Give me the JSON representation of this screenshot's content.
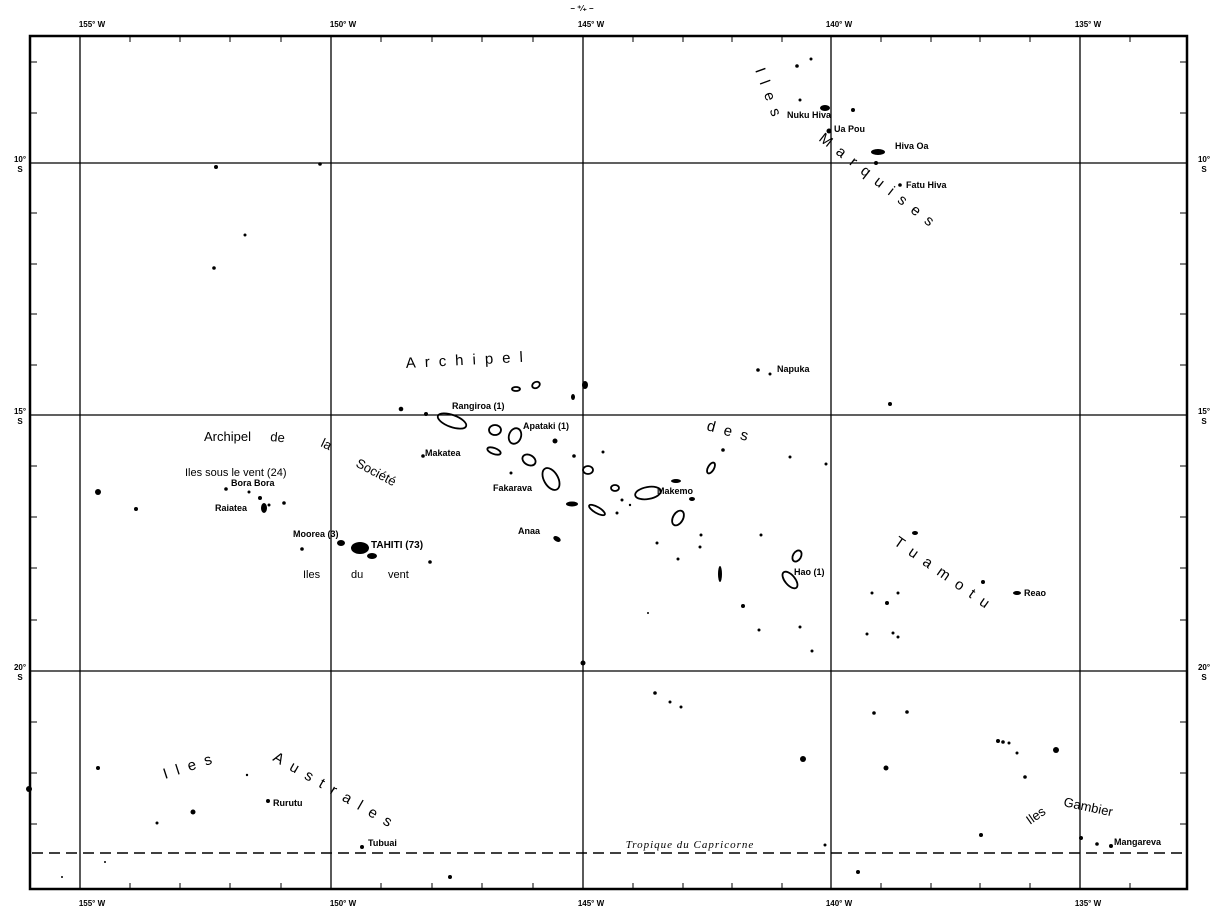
{
  "header_mark": "– ⁺⁄₊ –",
  "longitude_labels": [
    "155° W",
    "150° W",
    "145° W",
    "140° W",
    "135° W"
  ],
  "latitude_labels": [
    {
      "deg": "10°",
      "hemi": "S"
    },
    {
      "deg": "15°",
      "hemi": "S"
    },
    {
      "deg": "20°",
      "hemi": "S"
    }
  ],
  "regions": {
    "archipel_societe": [
      "Archipel",
      "de",
      "la",
      "Société"
    ],
    "archipel_tuamotu": [
      "Archipel",
      "des",
      "Tuamotu"
    ],
    "iles_marquises": [
      "Iles",
      "Marquises"
    ],
    "iles_australes": [
      "Iles",
      "Australes"
    ],
    "iles_gambier": [
      "Iles",
      "Gambier"
    ],
    "iles_sous_le_vent": "Iles sous le vent (24)",
    "iles_du_vent": [
      "Iles",
      "du",
      "vent"
    ]
  },
  "islands": {
    "nuku_hiva": "Nuku Hiva",
    "ua_pou": "Ua Pou",
    "hiva_oa": "Hiva Oa",
    "fatu_hiva": "Fatu Hiva",
    "napuka": "Napuka",
    "rangiroa": "Rangiroa (1)",
    "apataki": "Apataki (1)",
    "makatea": "Makatea",
    "fakarava": "Fakarava",
    "makemo": "Makemo",
    "anaa": "Anaa",
    "hao": "Hao (1)",
    "reao": "Reao",
    "bora_bora": "Bora Bora",
    "raiatea": "Raiatea",
    "moorea": "Moorea (3)",
    "tahiti": "TAHITI (73)",
    "rurutu": "Rurutu",
    "tubuai": "Tubuai",
    "mangareva": "Mangareva"
  },
  "tropic_label": "Tropique du Capricorne"
}
